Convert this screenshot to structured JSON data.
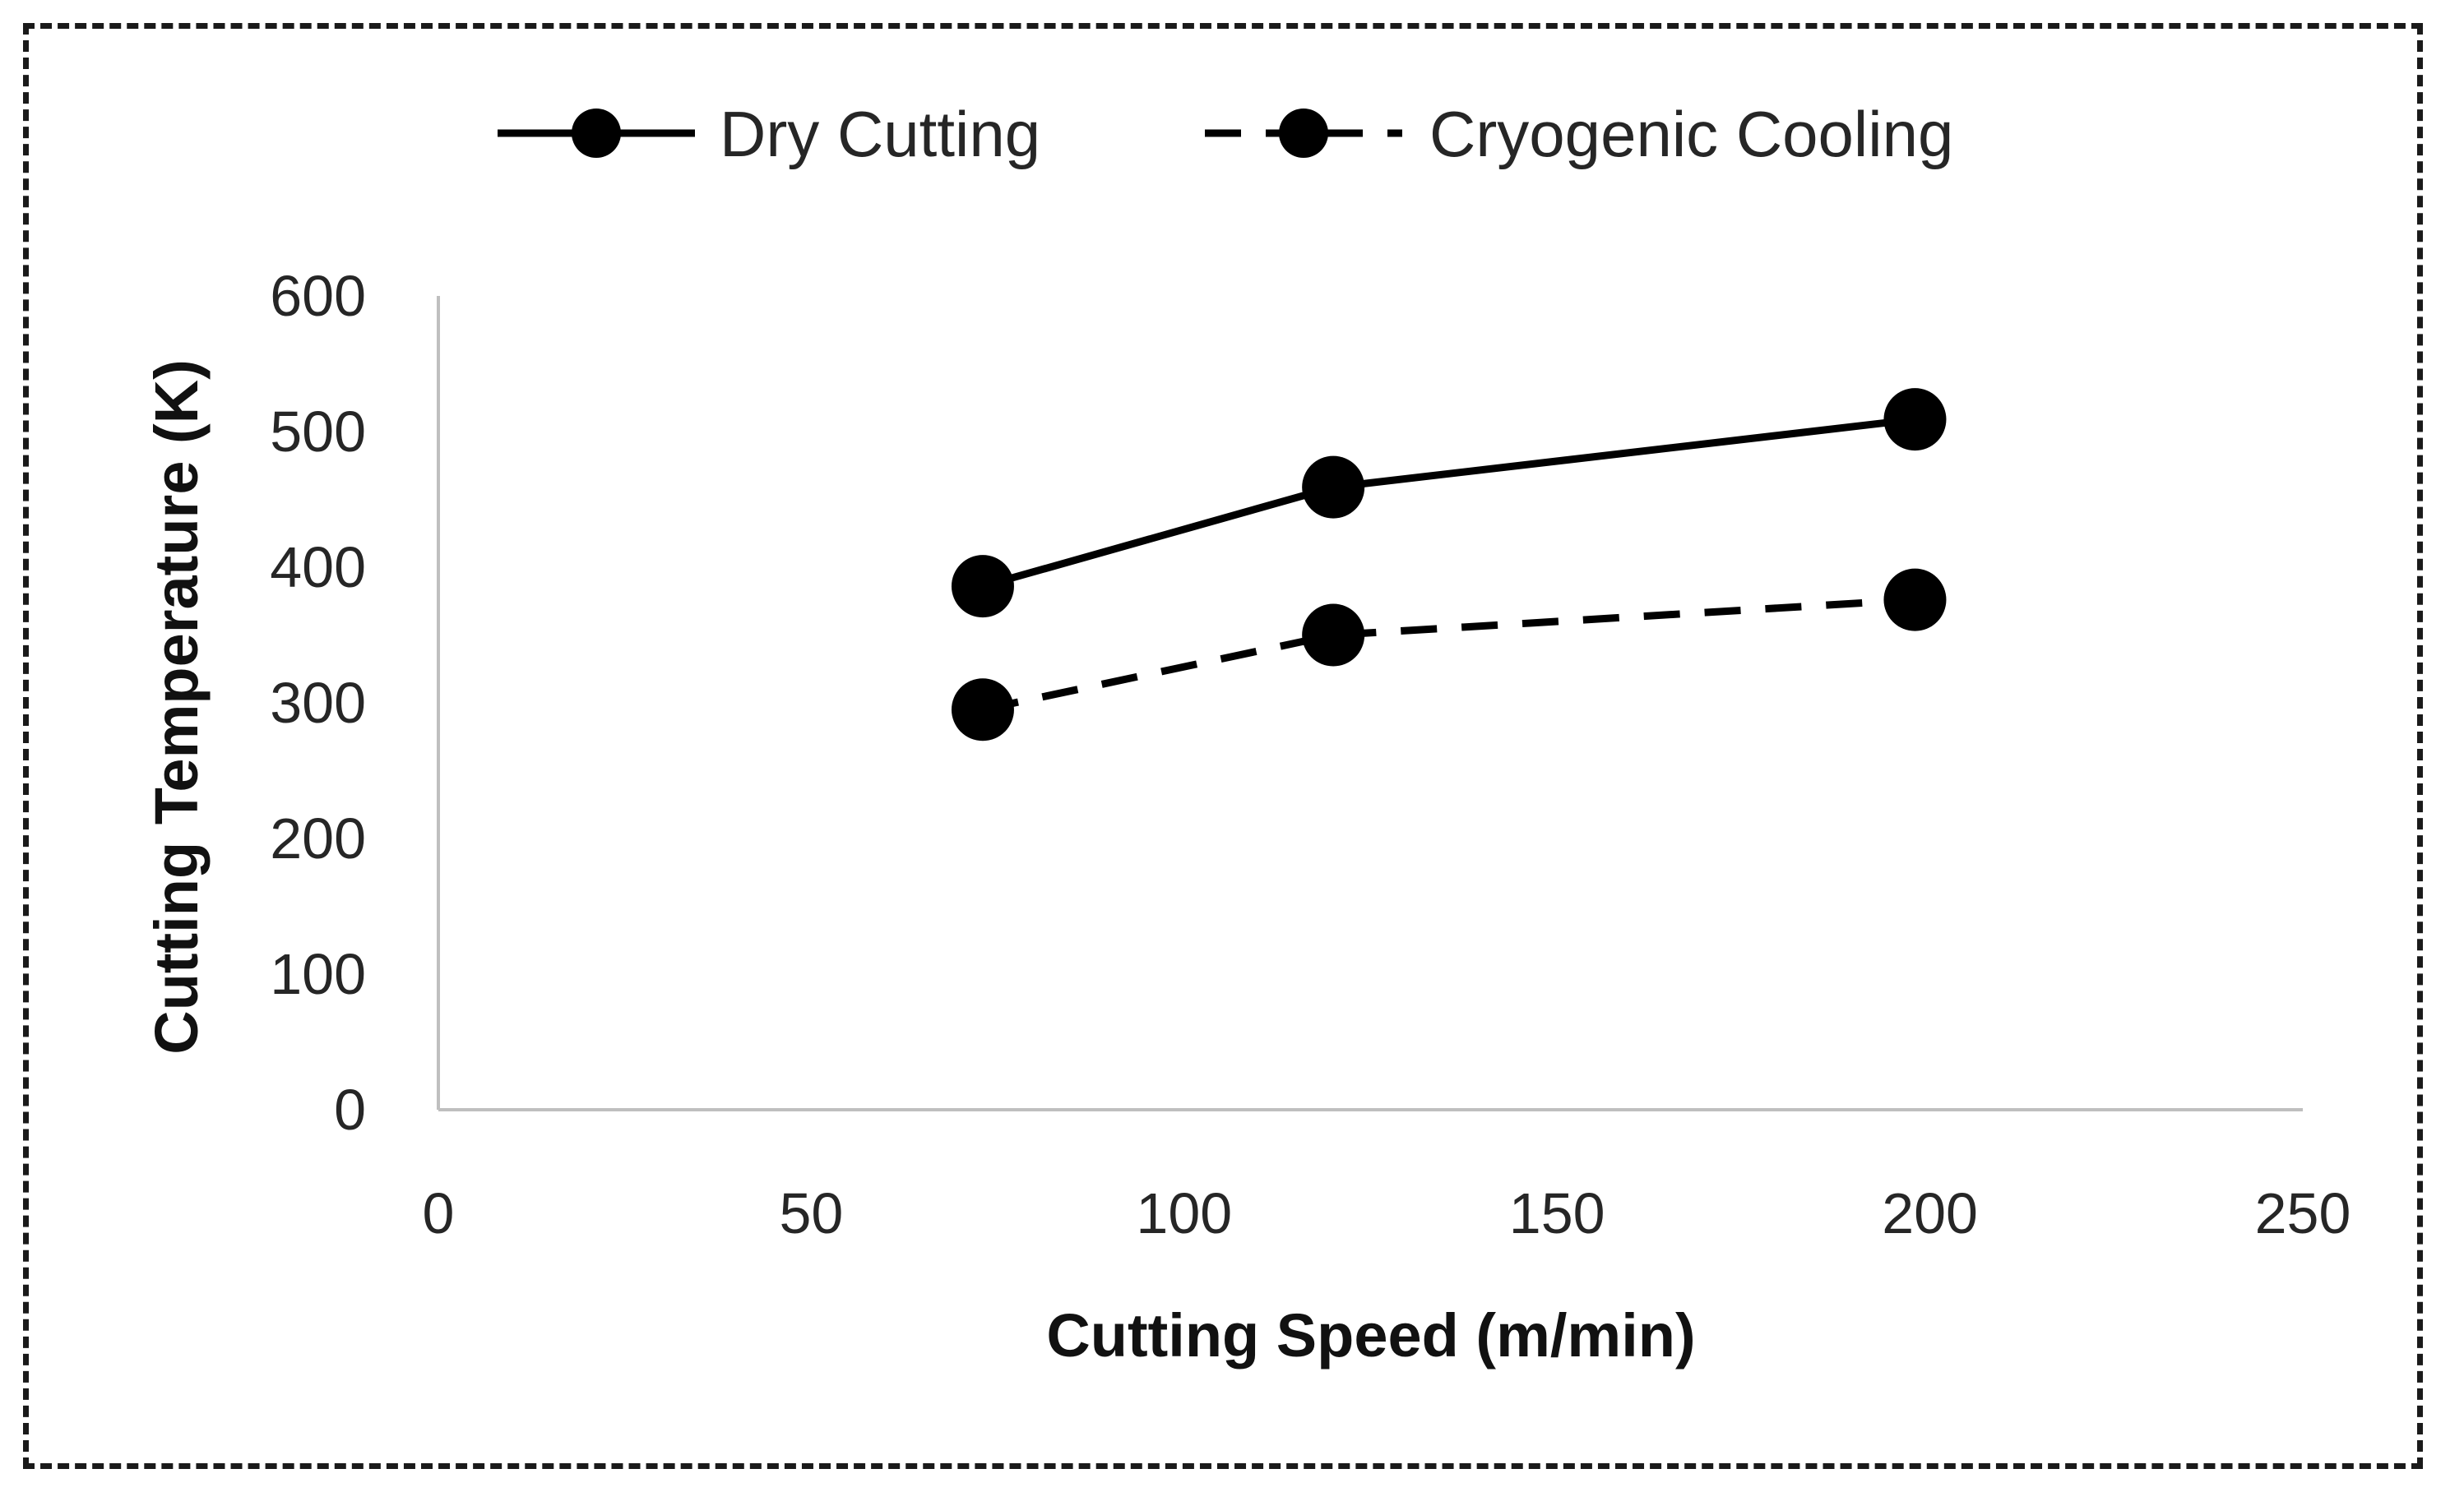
{
  "chart_data": {
    "type": "line",
    "title": "",
    "xlabel": "Cutting Speed (m/min)",
    "ylabel": "Cutting Temperature (K)",
    "xlim": [
      0,
      250
    ],
    "ylim": [
      0,
      600
    ],
    "xticks": [
      0,
      50,
      100,
      150,
      200,
      250
    ],
    "yticks": [
      0,
      100,
      200,
      300,
      400,
      500,
      600
    ],
    "grid": false,
    "legend_position": "top",
    "series": [
      {
        "name": "Dry Cutting",
        "style": "solid",
        "color": "#000000",
        "x": [
          73,
          120,
          198
        ],
        "y": [
          386,
          459,
          509
        ]
      },
      {
        "name": "Cryogenic Cooling",
        "style": "dashed",
        "color": "#000000",
        "x": [
          73,
          120,
          198
        ],
        "y": [
          295,
          350,
          376
        ]
      }
    ]
  }
}
